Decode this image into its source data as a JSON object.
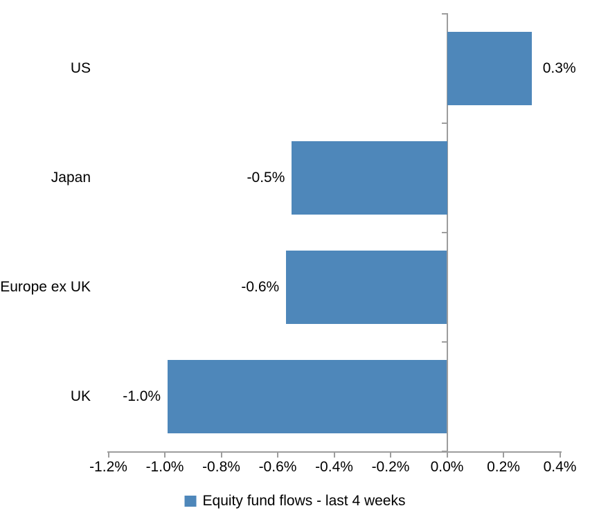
{
  "chart_data": {
    "type": "bar",
    "orientation": "horizontal",
    "title": "",
    "categories": [
      "US",
      "Japan",
      "Europe ex UK",
      "UK"
    ],
    "values": [
      0.3,
      -0.5,
      -0.6,
      -1.0
    ],
    "values_precise": [
      0.3,
      -0.55,
      -0.57,
      -0.99
    ],
    "data_labels": [
      "0.3%",
      "-0.5%",
      "-0.6%",
      "-1.0%"
    ],
    "x_axis": {
      "min": -1.2,
      "max": 0.4,
      "step": 0.2,
      "tick_labels": [
        "-1.2%",
        "-1.0%",
        "-0.8%",
        "-0.6%",
        "-0.4%",
        "-0.2%",
        "0.0%",
        "0.2%",
        "0.4%"
      ]
    },
    "grid": false,
    "legend_position": "bottom",
    "legend": [
      {
        "label": "Equity fund flows - last 4 weeks",
        "color": "#4E87BA"
      }
    ],
    "colors": {
      "bar": "#4E87BA",
      "axis": "#9D9D9D",
      "text": "#000000",
      "background": "#FFFFFF"
    }
  }
}
